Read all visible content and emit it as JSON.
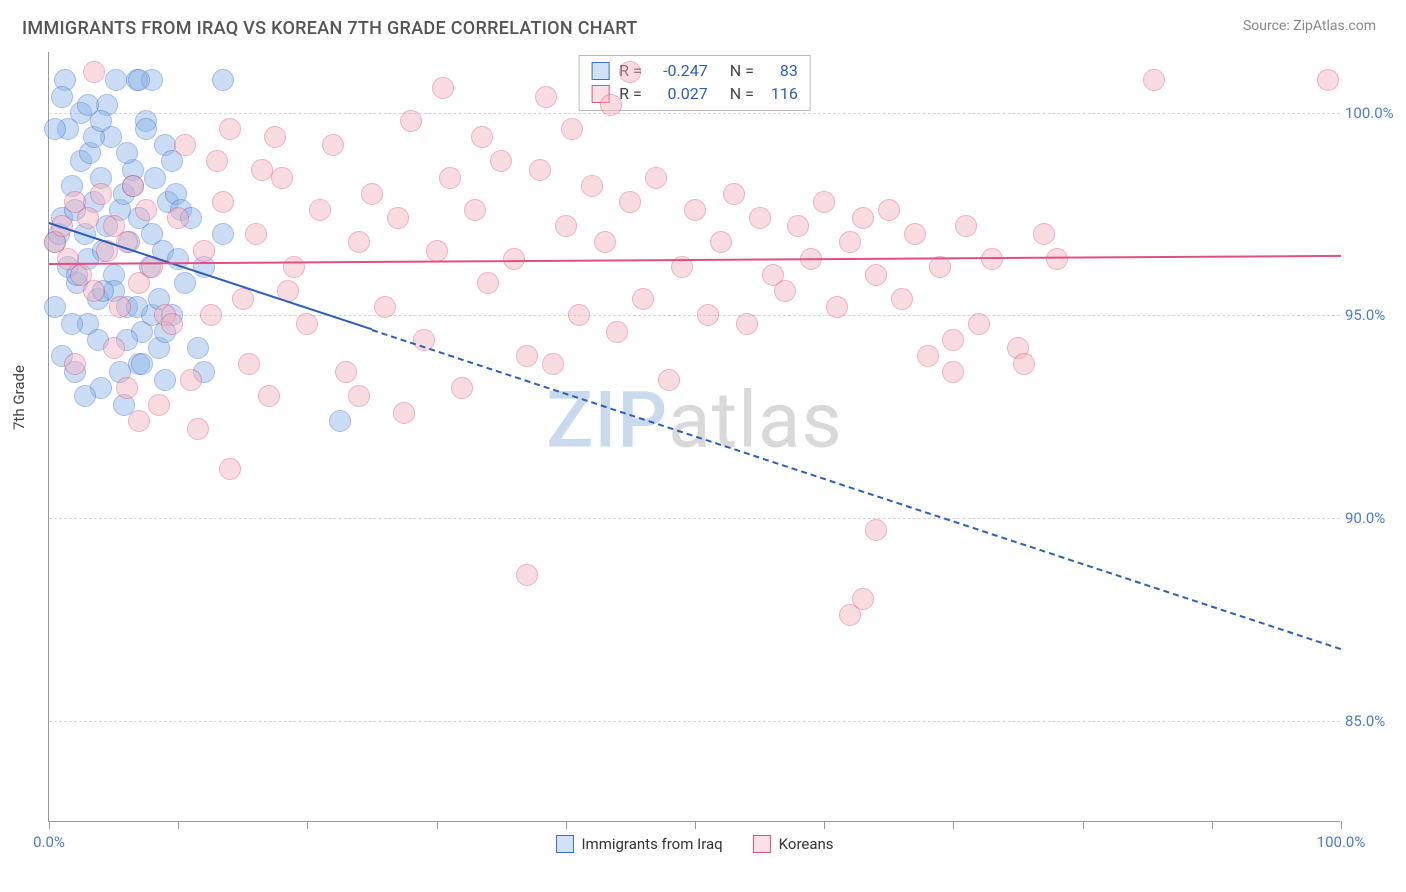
{
  "title": "IMMIGRANTS FROM IRAQ VS KOREAN 7TH GRADE CORRELATION CHART",
  "source": "Source: ZipAtlas.com",
  "ylabel": "7th Grade",
  "watermark": {
    "part1": "ZIP",
    "part2": "atlas"
  },
  "chart": {
    "type": "scatter",
    "xlim": [
      0,
      100
    ],
    "ylim": [
      82.5,
      101.5
    ],
    "yticks": [
      {
        "v": 85.0,
        "label": "85.0%"
      },
      {
        "v": 90.0,
        "label": "90.0%"
      },
      {
        "v": 95.0,
        "label": "95.0%"
      },
      {
        "v": 100.0,
        "label": "100.0%"
      }
    ],
    "xticks": [
      0,
      10,
      20,
      30,
      40,
      50,
      60,
      70,
      80,
      90,
      100
    ],
    "xtick_labels": [
      {
        "v": 0,
        "label": "0.0%"
      },
      {
        "v": 100,
        "label": "100.0%"
      }
    ],
    "ytick_color": "#4a7bd0",
    "xtick_color": "#4a7bd0",
    "background_color": "#ffffff",
    "grid_color": "#d5d5d5",
    "marker_radius": 11,
    "marker_opacity": 0.45,
    "series": [
      {
        "name": "Immigrants from Iraq",
        "color_fill": "#8db4e8",
        "color_stroke": "#3b6fc8",
        "R": "-0.247",
        "N": "83",
        "trend": {
          "x1": 0,
          "y1": 97.3,
          "x2": 100,
          "y2": 86.8,
          "solid_until_x": 25,
          "color": "#2b5fb8",
          "width": 2
        },
        "points": [
          [
            0.5,
            96.8
          ],
          [
            0.8,
            97.0
          ],
          [
            1.0,
            97.4
          ],
          [
            1.2,
            100.8
          ],
          [
            1.5,
            96.2
          ],
          [
            1.8,
            98.2
          ],
          [
            2.0,
            97.6
          ],
          [
            2.2,
            95.8
          ],
          [
            2.5,
            98.8
          ],
          [
            2.8,
            97.0
          ],
          [
            3.0,
            96.4
          ],
          [
            3.2,
            99.0
          ],
          [
            3.5,
            97.8
          ],
          [
            3.8,
            95.4
          ],
          [
            4.0,
            98.4
          ],
          [
            4.2,
            96.6
          ],
          [
            4.5,
            97.2
          ],
          [
            4.8,
            99.4
          ],
          [
            5.0,
            96.0
          ],
          [
            5.2,
            100.8
          ],
          [
            5.5,
            97.6
          ],
          [
            5.8,
            98.0
          ],
          [
            6.0,
            95.2
          ],
          [
            6.2,
            96.8
          ],
          [
            6.5,
            98.6
          ],
          [
            6.8,
            100.8
          ],
          [
            7.0,
            97.4
          ],
          [
            7.2,
            94.6
          ],
          [
            7.5,
            99.8
          ],
          [
            7.8,
            96.2
          ],
          [
            8.0,
            97.0
          ],
          [
            8.2,
            98.4
          ],
          [
            8.5,
            94.2
          ],
          [
            8.8,
            96.6
          ],
          [
            9.0,
            99.2
          ],
          [
            9.2,
            97.8
          ],
          [
            9.5,
            95.0
          ],
          [
            9.8,
            98.0
          ],
          [
            10.0,
            96.4
          ],
          [
            10.2,
            97.6
          ],
          [
            1.0,
            94.0
          ],
          [
            2.0,
            93.6
          ],
          [
            3.0,
            94.8
          ],
          [
            4.0,
            93.2
          ],
          [
            5.0,
            95.6
          ],
          [
            6.0,
            94.4
          ],
          [
            7.0,
            93.8
          ],
          [
            8.0,
            95.0
          ],
          [
            9.0,
            94.6
          ],
          [
            1.5,
            99.6
          ],
          [
            2.5,
            100.0
          ],
          [
            3.5,
            99.4
          ],
          [
            4.5,
            100.2
          ],
          [
            6.0,
            99.0
          ],
          [
            7.5,
            99.6
          ],
          [
            0.5,
            95.2
          ],
          [
            1.8,
            94.8
          ],
          [
            2.2,
            96.0
          ],
          [
            3.8,
            94.4
          ],
          [
            4.2,
            95.6
          ],
          [
            5.5,
            93.6
          ],
          [
            6.8,
            95.2
          ],
          [
            7.2,
            93.8
          ],
          [
            8.5,
            95.4
          ],
          [
            9.0,
            93.4
          ],
          [
            10.5,
            95.8
          ],
          [
            11.0,
            97.4
          ],
          [
            11.5,
            94.2
          ],
          [
            12.0,
            96.2
          ],
          [
            12.0,
            93.6
          ],
          [
            13.5,
            100.8
          ],
          [
            13.5,
            97.0
          ],
          [
            8.0,
            100.8
          ],
          [
            3.0,
            100.2
          ],
          [
            0.5,
            99.6
          ],
          [
            1.0,
            100.4
          ],
          [
            4.0,
            99.8
          ],
          [
            6.5,
            98.2
          ],
          [
            9.5,
            98.8
          ],
          [
            2.8,
            93.0
          ],
          [
            5.8,
            92.8
          ],
          [
            22.5,
            92.4
          ],
          [
            7.0,
            100.8
          ]
        ]
      },
      {
        "name": "Koreans",
        "color_fill": "#f3b0c0",
        "color_stroke": "#e05080",
        "R": "0.027",
        "N": "116",
        "trend": {
          "x1": 0,
          "y1": 96.3,
          "x2": 100,
          "y2": 96.5,
          "solid_until_x": 100,
          "color": "#e05080",
          "width": 2
        },
        "points": [
          [
            0.5,
            96.8
          ],
          [
            1.0,
            97.2
          ],
          [
            1.5,
            96.4
          ],
          [
            2.0,
            97.8
          ],
          [
            2.5,
            96.0
          ],
          [
            3.0,
            97.4
          ],
          [
            3.5,
            95.6
          ],
          [
            4.0,
            98.0
          ],
          [
            4.5,
            96.6
          ],
          [
            5.0,
            97.2
          ],
          [
            5.5,
            95.2
          ],
          [
            6.0,
            96.8
          ],
          [
            6.5,
            98.2
          ],
          [
            7.0,
            95.8
          ],
          [
            7.5,
            97.6
          ],
          [
            8.0,
            96.2
          ],
          [
            9.0,
            95.0
          ],
          [
            10.0,
            97.4
          ],
          [
            11.0,
            93.4
          ],
          [
            12.0,
            96.6
          ],
          [
            13.0,
            98.8
          ],
          [
            14.0,
            99.6
          ],
          [
            15.0,
            95.4
          ],
          [
            16.0,
            97.0
          ],
          [
            17.0,
            93.0
          ],
          [
            18.0,
            98.4
          ],
          [
            19.0,
            96.2
          ],
          [
            20.0,
            94.8
          ],
          [
            21.0,
            97.6
          ],
          [
            22.0,
            99.2
          ],
          [
            23.0,
            93.6
          ],
          [
            24.0,
            96.8
          ],
          [
            25.0,
            98.0
          ],
          [
            26.0,
            95.2
          ],
          [
            27.0,
            97.4
          ],
          [
            28.0,
            99.8
          ],
          [
            29.0,
            94.4
          ],
          [
            30.0,
            96.6
          ],
          [
            30.5,
            100.6
          ],
          [
            31.0,
            98.4
          ],
          [
            32.0,
            93.2
          ],
          [
            33.0,
            97.6
          ],
          [
            33.5,
            99.4
          ],
          [
            34.0,
            95.8
          ],
          [
            35.0,
            98.8
          ],
          [
            36.0,
            96.4
          ],
          [
            37.0,
            94.0
          ],
          [
            38.0,
            98.6
          ],
          [
            38.5,
            100.4
          ],
          [
            39.0,
            93.8
          ],
          [
            40.0,
            97.2
          ],
          [
            40.5,
            99.6
          ],
          [
            41.0,
            95.0
          ],
          [
            42.0,
            98.2
          ],
          [
            43.0,
            96.8
          ],
          [
            43.5,
            100.2
          ],
          [
            44.0,
            94.6
          ],
          [
            45.0,
            97.8
          ],
          [
            46.0,
            95.4
          ],
          [
            47.0,
            98.4
          ],
          [
            48.0,
            93.4
          ],
          [
            49.0,
            96.2
          ],
          [
            50.0,
            97.6
          ],
          [
            51.0,
            95.0
          ],
          [
            52.0,
            96.8
          ],
          [
            53.0,
            98.0
          ],
          [
            54.0,
            94.8
          ],
          [
            55.0,
            97.4
          ],
          [
            56.0,
            96.0
          ],
          [
            57.0,
            95.6
          ],
          [
            58.0,
            97.2
          ],
          [
            59.0,
            96.4
          ],
          [
            60.0,
            97.8
          ],
          [
            61.0,
            95.2
          ],
          [
            62.0,
            96.8
          ],
          [
            63.0,
            97.4
          ],
          [
            64.0,
            96.0
          ],
          [
            65.0,
            97.6
          ],
          [
            66.0,
            95.4
          ],
          [
            67.0,
            97.0
          ],
          [
            68.0,
            94.0
          ],
          [
            69.0,
            96.2
          ],
          [
            70.0,
            93.6
          ],
          [
            71.0,
            97.2
          ],
          [
            72.0,
            94.8
          ],
          [
            73.0,
            96.4
          ],
          [
            75.0,
            94.2
          ],
          [
            77.0,
            97.0
          ],
          [
            78.0,
            96.4
          ],
          [
            37.0,
            88.6
          ],
          [
            14.0,
            91.2
          ],
          [
            45.0,
            101.0
          ],
          [
            64.0,
            89.7
          ],
          [
            63.0,
            88.0
          ],
          [
            62.0,
            87.6
          ],
          [
            70.0,
            94.4
          ],
          [
            75.5,
            93.8
          ],
          [
            85.5,
            100.8
          ],
          [
            99.0,
            100.8
          ],
          [
            3.5,
            101.0
          ],
          [
            24.0,
            93.0
          ],
          [
            27.5,
            92.6
          ],
          [
            11.5,
            92.2
          ],
          [
            17.5,
            99.4
          ],
          [
            18.5,
            95.6
          ],
          [
            6.0,
            93.2
          ],
          [
            8.5,
            92.8
          ],
          [
            2.0,
            93.8
          ],
          [
            5.0,
            94.2
          ],
          [
            7.0,
            92.4
          ],
          [
            9.5,
            94.8
          ],
          [
            10.5,
            99.2
          ],
          [
            12.5,
            95.0
          ],
          [
            13.5,
            97.8
          ],
          [
            15.5,
            93.8
          ],
          [
            16.5,
            98.6
          ]
        ]
      }
    ]
  },
  "legend_bottom": [
    {
      "label": "Immigrants from Iraq",
      "fill": "#8db4e8",
      "stroke": "#3b6fc8"
    },
    {
      "label": "Koreans",
      "fill": "#f3b0c0",
      "stroke": "#e05080"
    }
  ]
}
